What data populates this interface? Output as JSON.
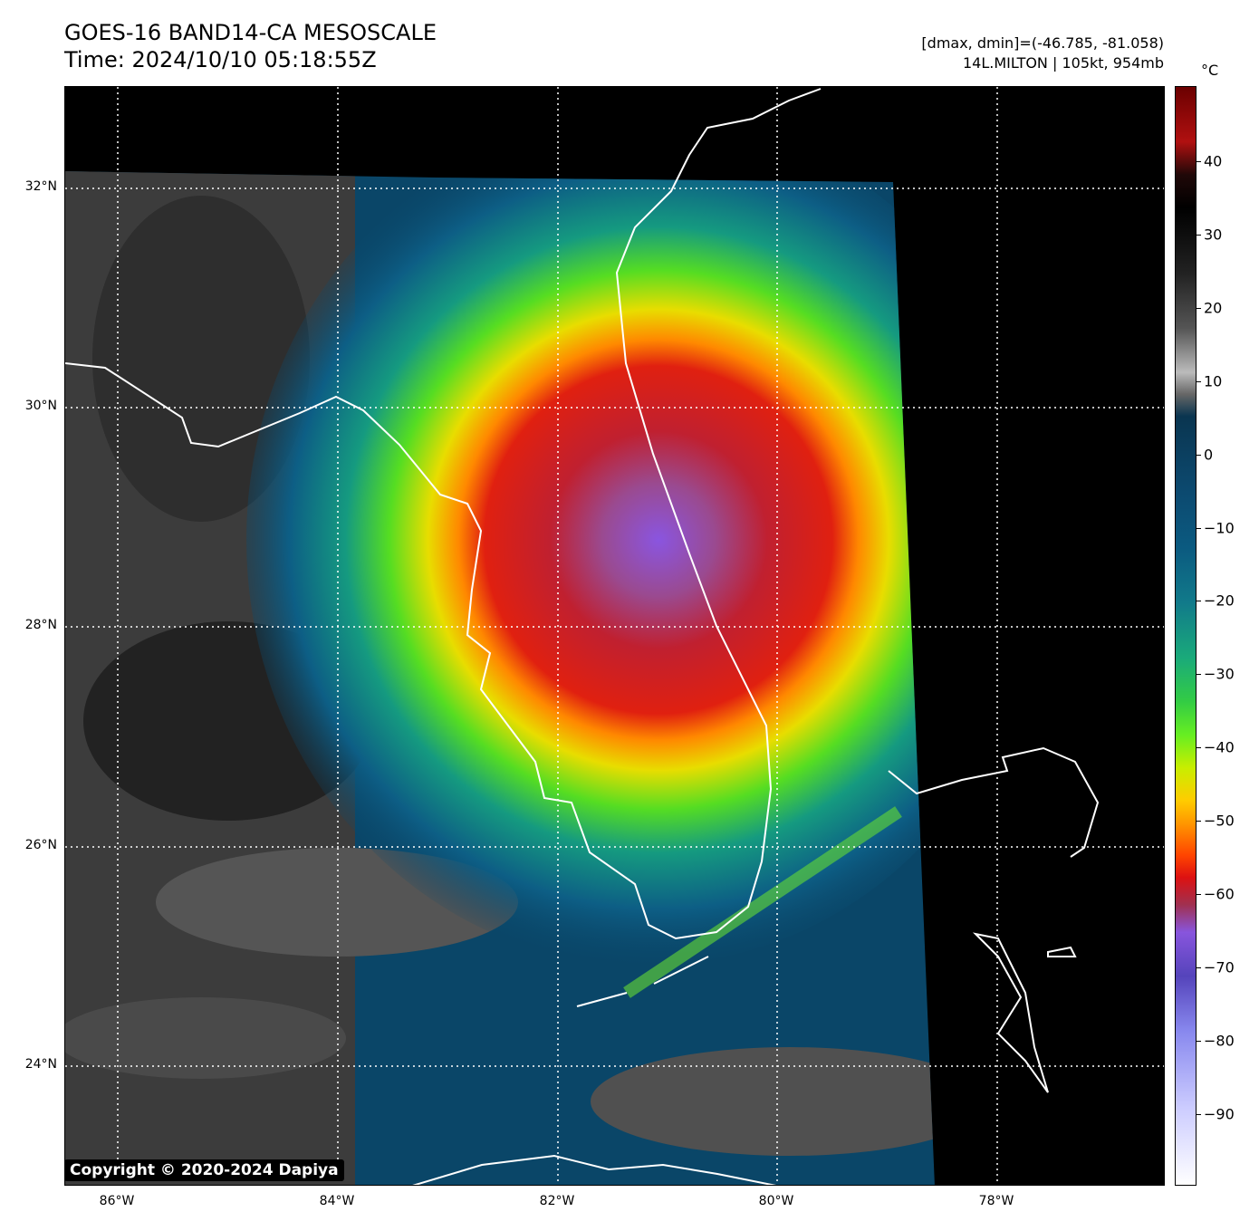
{
  "title": {
    "line1": "GOES-16 BAND14-CA MESOSCALE",
    "line2": "Time: 2024/10/10 05:18:55Z"
  },
  "info": {
    "range": "[dmax, dmin]=(-46.785, -81.058)",
    "storm": "14L.MILTON | 105kt, 954mb"
  },
  "map": {
    "lat_labels": [
      "32°N",
      "30°N",
      "28°N",
      "26°N",
      "24°N"
    ],
    "lon_labels": [
      "86°W",
      "84°W",
      "82°W",
      "80°W",
      "78°W"
    ],
    "extent": {
      "lon": [
        -86.5,
        -76.5
      ],
      "lat": [
        22.9,
        32.9
      ]
    },
    "storm_center": {
      "lon": -81.1,
      "lat": 28.7
    }
  },
  "colorbar": {
    "unit": "°C",
    "ticks": [
      "40",
      "30",
      "20",
      "10",
      "0",
      "−10",
      "−20",
      "−30",
      "−40",
      "−50",
      "−60",
      "−70",
      "−80",
      "−90"
    ],
    "range": [
      -100,
      50
    ]
  },
  "copyright": "Copyright © 2020-2024 Dapiya"
}
